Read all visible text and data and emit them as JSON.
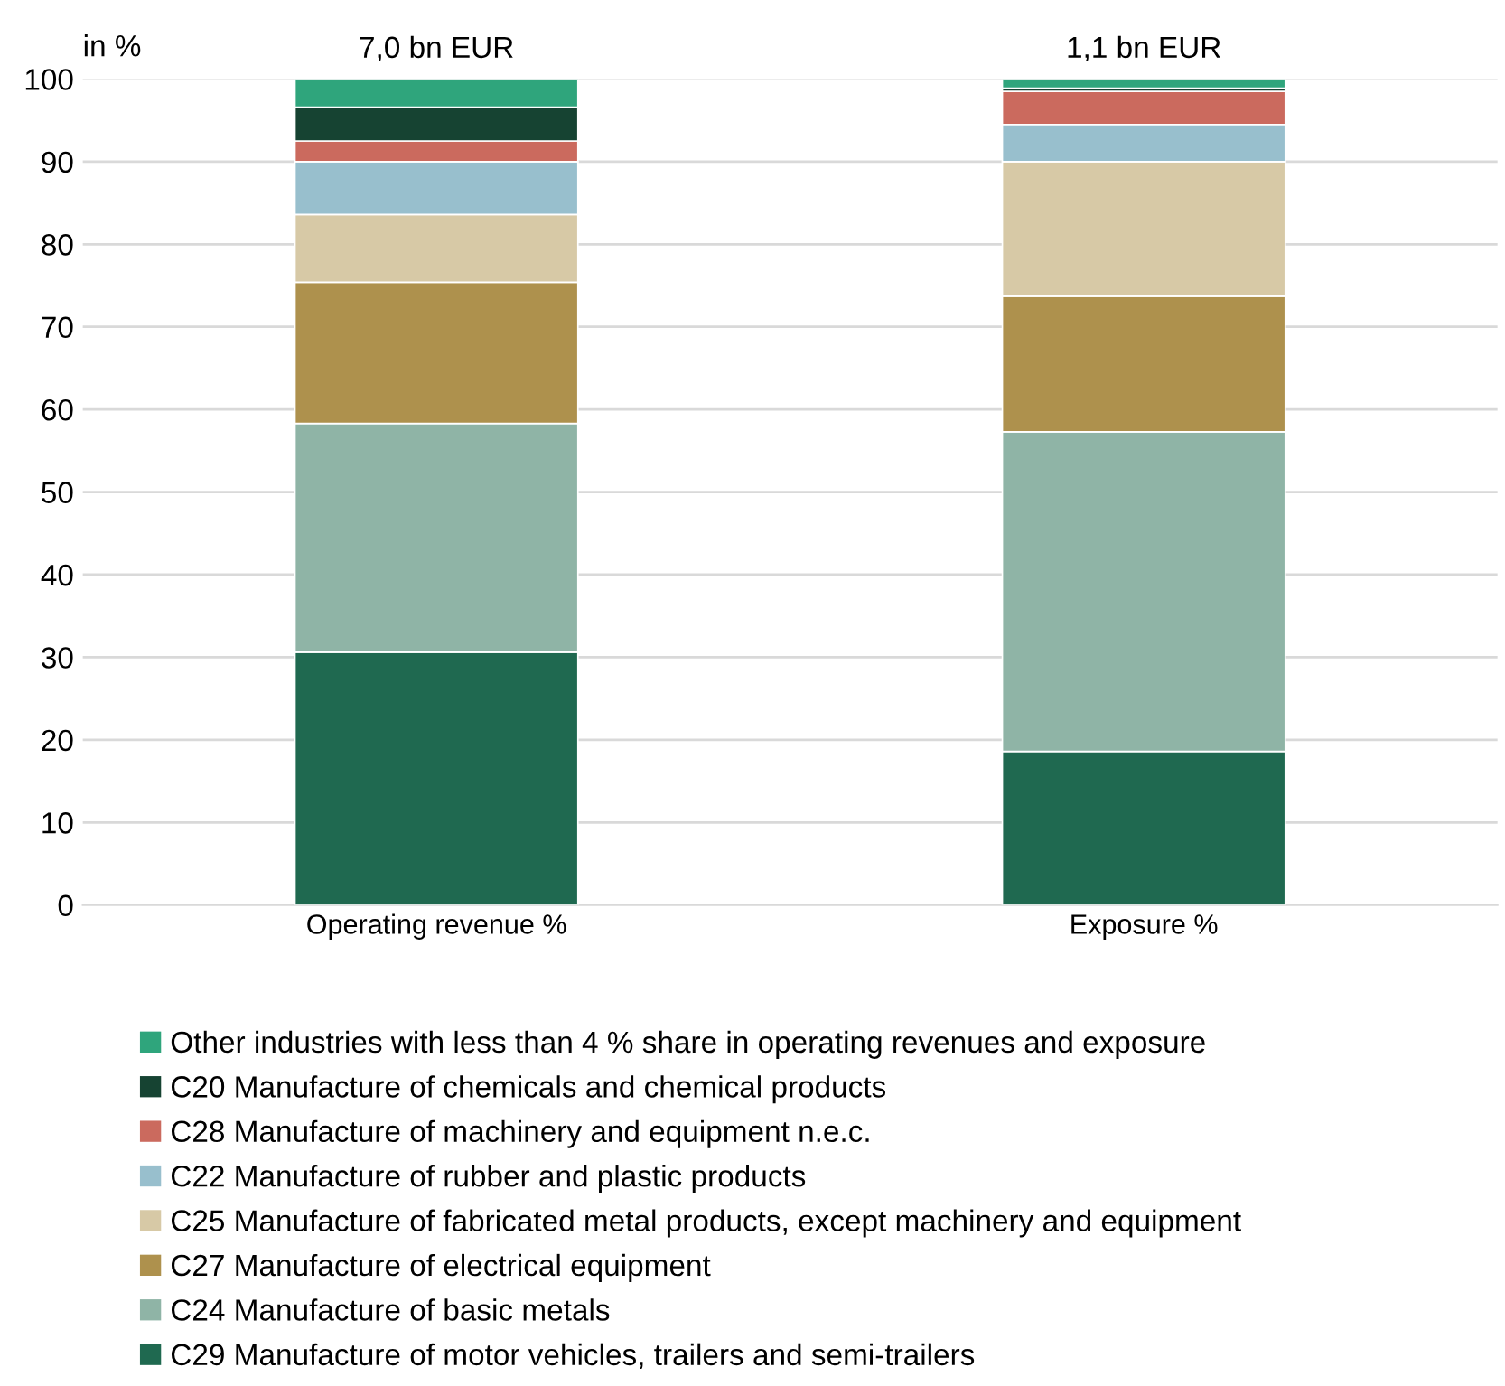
{
  "chart_data": {
    "type": "bar",
    "stacked": true,
    "ylabel": "in %",
    "categories": [
      "Operating revenue %",
      "Exposure %"
    ],
    "ylim": [
      0,
      100
    ],
    "yticks": [
      0,
      10,
      20,
      30,
      40,
      50,
      60,
      70,
      80,
      90,
      100
    ],
    "grid": "y",
    "legend": "bottom",
    "annotations": [
      {
        "text": "7,0 bn EUR",
        "x": "Operating revenue %",
        "y": 100
      },
      {
        "text": "1,1 bn EUR",
        "x": "Exposure %",
        "y": 100
      }
    ],
    "series": [
      {
        "name": "C29 Manufacture of motor vehicles, trailers and semi-trailers",
        "color": "#1f6950",
        "values": [
          30.6,
          18.6
        ]
      },
      {
        "name": "C24 Manufacture of basic metals",
        "color": "#8fb4a6",
        "values": [
          27.7,
          38.7
        ]
      },
      {
        "name": "C27 Manufacture of electrical equipment",
        "color": "#ae914d",
        "values": [
          17.1,
          16.4
        ]
      },
      {
        "name": "C25 Manufacture of fabricated metal products, except machinery and equipment",
        "color": "#d7c9a6",
        "values": [
          8.2,
          16.3
        ]
      },
      {
        "name": "C22 Manufacture of rubber and plastic products",
        "color": "#98bfcd",
        "values": [
          6.4,
          4.5
        ]
      },
      {
        "name": "C28 Manufacture of machinery and equipment n.e.c.",
        "color": "#cb6a5e",
        "values": [
          2.5,
          4.0
        ]
      },
      {
        "name": "C20 Manufacture of chemicals and chemical products",
        "color": "#164332",
        "values": [
          4.1,
          0.4
        ]
      },
      {
        "name": "Other industries with less than 4 % share in operating revenues and exposure",
        "color": "#2fa57c",
        "values": [
          3.4,
          1.1
        ]
      }
    ]
  }
}
